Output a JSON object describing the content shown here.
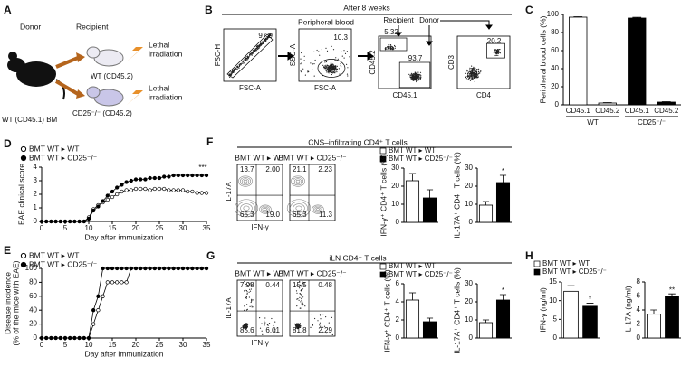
{
  "panel_labels": [
    "A",
    "B",
    "C",
    "D",
    "E",
    "F",
    "G",
    "H"
  ],
  "panel_a": {
    "donor": "Donor",
    "recipient": "Recipient",
    "donor_mouse": "WT (CD45.1) BM",
    "recipients": [
      "WT (CD45.2)",
      "CD25⁻/⁻ (CD45.2)"
    ],
    "treatment": [
      [
        "Lethal",
        "irradiation"
      ],
      [
        "Lethal",
        "irradiation"
      ]
    ]
  },
  "panel_b": {
    "title": "After 8 weeks",
    "plots": [
      {
        "x_label": "FSC-A",
        "y_label": "FSC-H",
        "gates": [
          "97.9"
        ]
      },
      {
        "header": "Peripheral blood",
        "x_label": "FSC-A",
        "y_label": "SSC-A",
        "gates": [
          "10.3"
        ]
      },
      {
        "headers": [
          "Recipient",
          "Donor"
        ],
        "x_label": "CD45.1",
        "y_label": "CD45.2",
        "gates": [
          "5.32",
          "93.7"
        ]
      },
      {
        "x_label": "CD4",
        "y_label": "CD3",
        "gates": [
          "20.2"
        ]
      }
    ]
  },
  "panel_f": {
    "title": "CNS–infiltrating CD4⁺ T cells",
    "x_label": "IFN-γ",
    "y_label": "IL-17A",
    "plots": [
      {
        "title": "BMT WT ▸ WT",
        "quadrants": [
          "13.7",
          "2.00",
          "65.3",
          "19.0"
        ]
      },
      {
        "title": "BMT WT ▸ CD25⁻/⁻",
        "quadrants": [
          "21.1",
          "2.23",
          "65.3",
          "11.3"
        ]
      }
    ],
    "legend": [
      {
        "name": "BMT WT ▸ WT",
        "color": "#ffffff"
      },
      {
        "name": "BMT WT ▸ CD25⁻/⁻",
        "color": "#000000"
      }
    ]
  },
  "panel_g": {
    "title": "iLN CD4⁺ T cells",
    "x_label": "IFN-γ",
    "y_label": "IL-17A",
    "plots": [
      {
        "title": "BMT WT ▸ WT",
        "quadrants": [
          "7.98",
          "0.44",
          "85.6",
          "6.01"
        ]
      },
      {
        "title": "BMT WT ▸ CD25⁻/⁻",
        "quadrants": [
          "15.5",
          "0.48",
          "81.8",
          "2.29"
        ]
      }
    ],
    "legend": [
      {
        "name": "BMT WT ▸ WT",
        "color": "#ffffff"
      },
      {
        "name": "BMT WT ▸ CD25⁻/⁻",
        "color": "#000000"
      }
    ]
  },
  "panel_h": {
    "legend": [
      {
        "name": "BMT WT ▸ WT",
        "color": "#ffffff"
      },
      {
        "name": "BMT WT ▸ CD25⁻/⁻",
        "color": "#000000"
      }
    ]
  },
  "chart_data": [
    {
      "type": "bar",
      "y_label": "Peripheral blood cells (%)",
      "categories": [
        "CD45.1",
        "CD45.2",
        "CD45.1",
        "CD45.2"
      ],
      "groups": [
        "WT",
        "CD25⁻/⁻"
      ],
      "values": [
        97,
        2,
        96,
        3
      ],
      "errors": [
        0.5,
        0.5,
        0.8,
        0.5
      ],
      "colors": [
        "#ffffff",
        "#ffffff",
        "#000000",
        "#000000"
      ],
      "ylim": [
        0,
        100
      ],
      "yticks": [
        0,
        20,
        40,
        60,
        80,
        100
      ]
    },
    {
      "type": "line",
      "y_label": "EAE clinical score",
      "x_label": "Day after immunization",
      "annotation": "***",
      "x": [
        0,
        1,
        2,
        3,
        4,
        5,
        6,
        7,
        8,
        9,
        10,
        11,
        12,
        13,
        14,
        15,
        16,
        17,
        18,
        19,
        20,
        21,
        22,
        23,
        24,
        25,
        26,
        27,
        28,
        29,
        30,
        31,
        32,
        33,
        34,
        35
      ],
      "series": [
        {
          "name": "BMT WT ▸ WT",
          "color": "#000000",
          "fill": "#ffffff",
          "values": [
            0,
            0,
            0,
            0,
            0,
            0,
            0,
            0,
            0,
            0,
            0.3,
            0.9,
            1.2,
            1.4,
            1.6,
            1.8,
            2.0,
            2.2,
            2.3,
            2.3,
            2.4,
            2.4,
            2.4,
            2.3,
            2.4,
            2.4,
            2.4,
            2.3,
            2.3,
            2.3,
            2.3,
            2.2,
            2.2,
            2.1,
            2.1,
            2.1
          ]
        },
        {
          "name": "BMT WT ▸ CD25⁻/⁻",
          "color": "#000000",
          "fill": "#000000",
          "values": [
            0,
            0,
            0,
            0,
            0,
            0,
            0,
            0,
            0,
            0,
            0.2,
            0.8,
            1.1,
            1.5,
            1.9,
            2.2,
            2.5,
            2.7,
            2.9,
            3.0,
            3.1,
            3.1,
            3.1,
            3.2,
            3.2,
            3.2,
            3.3,
            3.3,
            3.4,
            3.4,
            3.4,
            3.4,
            3.4,
            3.4,
            3.4,
            3.4
          ]
        }
      ],
      "xlim": [
        0,
        35
      ],
      "xticks": [
        0,
        5,
        10,
        15,
        20,
        25,
        30,
        35
      ],
      "ylim": [
        0,
        4
      ],
      "yticks": [
        0,
        1,
        2,
        3,
        4
      ]
    },
    {
      "type": "line",
      "y_label": [
        "Disease incidence",
        "(% of the mice with EAE)"
      ],
      "x_label": "Day after immunization",
      "x": [
        0,
        1,
        2,
        3,
        4,
        5,
        6,
        7,
        8,
        9,
        10,
        11,
        12,
        13,
        14,
        15,
        16,
        17,
        18,
        19,
        20,
        21,
        22,
        23,
        24,
        25,
        26,
        27,
        28,
        29,
        30,
        31,
        32,
        33,
        34,
        35
      ],
      "series": [
        {
          "name": "BMT WT ▸ WT",
          "color": "#000000",
          "fill": "#ffffff",
          "values": [
            0,
            0,
            0,
            0,
            0,
            0,
            0,
            0,
            0,
            0,
            0,
            20,
            40,
            60,
            80,
            80,
            80,
            80,
            80,
            100,
            100,
            100,
            100,
            100,
            100,
            100,
            100,
            100,
            100,
            100,
            100,
            100,
            100,
            100,
            100,
            100
          ]
        },
        {
          "name": "BMT WT ▸ CD25⁻/⁻",
          "color": "#000000",
          "fill": "#000000",
          "values": [
            0,
            0,
            0,
            0,
            0,
            0,
            0,
            0,
            0,
            0,
            0,
            40,
            60,
            100,
            100,
            100,
            100,
            100,
            100,
            100,
            100,
            100,
            100,
            100,
            100,
            100,
            100,
            100,
            100,
            100,
            100,
            100,
            100,
            100,
            100,
            100
          ]
        }
      ],
      "xlim": [
        0,
        35
      ],
      "xticks": [
        0,
        5,
        10,
        15,
        20,
        25,
        30,
        35
      ],
      "ylim": [
        0,
        100
      ],
      "yticks": [
        0,
        20,
        40,
        60,
        80,
        100
      ]
    },
    {
      "type": "bar",
      "y_label": "IFN-γ⁺ CD4⁺ T cells (%)",
      "values": [
        23,
        13.5
      ],
      "errors": [
        4,
        4.5
      ],
      "colors": [
        "#ffffff",
        "#000000"
      ],
      "ylim": [
        0,
        30
      ],
      "yticks": [
        0,
        10,
        20,
        30
      ]
    },
    {
      "type": "bar",
      "y_label": "IL-17A⁺ CD4⁺ T cells (%)",
      "values": [
        9.5,
        22
      ],
      "errors": [
        2,
        4
      ],
      "colors": [
        "#ffffff",
        "#000000"
      ],
      "ylim": [
        0,
        30
      ],
      "yticks": [
        0,
        10,
        20,
        30
      ],
      "annotation": "*"
    },
    {
      "type": "bar",
      "y_label": "IFN-γ⁺ CD4⁺ T cells (%)",
      "values": [
        4.2,
        1.8
      ],
      "errors": [
        0.8,
        0.4
      ],
      "colors": [
        "#ffffff",
        "#000000"
      ],
      "ylim": [
        0,
        6
      ],
      "yticks": [
        0,
        2,
        4,
        6
      ]
    },
    {
      "type": "bar",
      "y_label": "IL-17A⁺ CD4⁺ T cells (%)",
      "values": [
        8.5,
        21
      ],
      "errors": [
        1.5,
        3
      ],
      "colors": [
        "#ffffff",
        "#000000"
      ],
      "ylim": [
        0,
        30
      ],
      "yticks": [
        0,
        10,
        20,
        30
      ],
      "annotation": "*"
    },
    {
      "type": "bar",
      "y_label": "IFN-γ (ng/ml)",
      "values": [
        12.5,
        8.5
      ],
      "errors": [
        1.5,
        0.8
      ],
      "colors": [
        "#ffffff",
        "#000000"
      ],
      "ylim": [
        0,
        15
      ],
      "yticks": [
        0,
        5,
        10,
        15
      ],
      "annotation": "*"
    },
    {
      "type": "bar",
      "y_label": "IL-17A (ng/ml)",
      "values": [
        3.4,
        6
      ],
      "errors": [
        0.6,
        0.3
      ],
      "colors": [
        "#ffffff",
        "#000000"
      ],
      "ylim": [
        0,
        8
      ],
      "yticks": [
        0,
        2,
        4,
        6,
        8
      ],
      "annotation": "**"
    }
  ]
}
